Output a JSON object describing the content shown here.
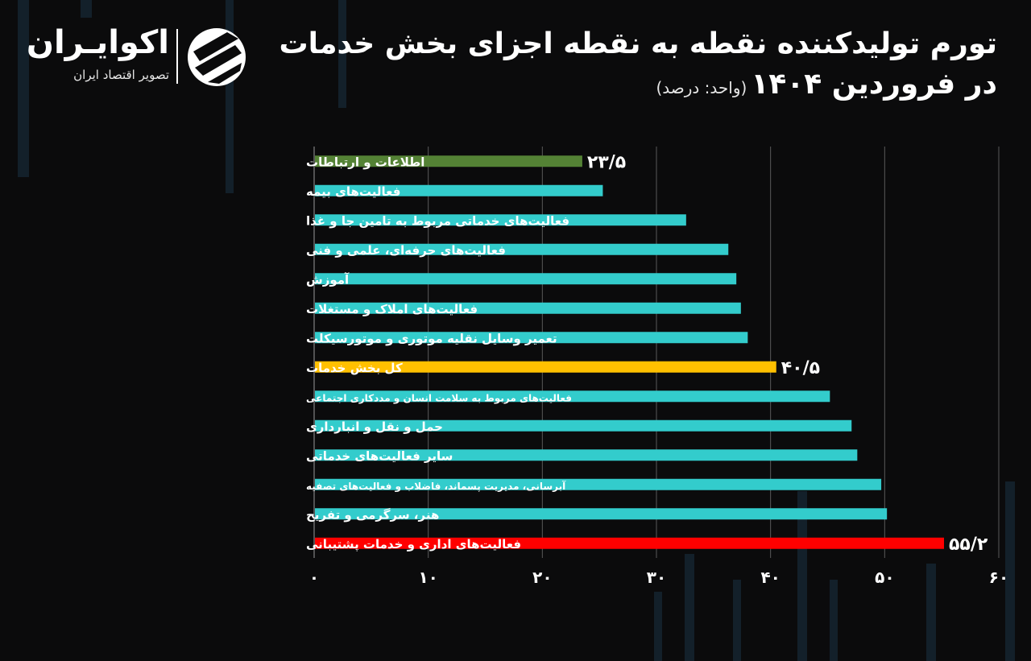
{
  "brand": {
    "name": "اکوایـران",
    "tagline": "تصویر اقتصاد ایران",
    "logo_icon": "ecoiran-logo-icon"
  },
  "header": {
    "title_line1": "تورم تولیدکننده نقطه به نقطه اجزای بخش خدمات",
    "title_line2_main": "در فروردین ۱۴۰۴",
    "title_line2_unit": "(واحد: درصد)"
  },
  "colors": {
    "background": "#0b0b0c",
    "default_bar": "#33cccc",
    "highlight_top": "#548235",
    "highlight_total": "#ffc000",
    "highlight_max": "#ff0000",
    "gridline": "#5a5a5a"
  },
  "chart_data": {
    "type": "bar",
    "orientation": "horizontal",
    "title": "تورم تولیدکننده نقطه به نقطه اجزای بخش خدمات در فروردین ۱۴۰۴",
    "unit": "درصد",
    "xlim": [
      0,
      60
    ],
    "xticks": [
      0,
      10,
      20,
      30,
      40,
      50,
      60
    ],
    "xtick_labels": [
      "۰",
      "۱۰",
      "۲۰",
      "۳۰",
      "۴۰",
      "۵۰",
      "۶۰"
    ],
    "grid": true,
    "categories": [
      "اطلاعات و ارتباطات",
      "فعالیت‌های بیمه",
      "فعالیت‌های خدماتی مربوط به تامین جا و غذا",
      "فعالیت‌های حرفه‌ای، علمی و فنی",
      "آموزش",
      "فعالیت‌های املاک و مستغلات",
      "تعمیر وسایل نقلیه موتوری و موتورسیکلت",
      "کل بخش خدمات",
      "فعالیت‌های مربوط به سلامت انسان و مددکاری اجتماعی",
      "حمل و نقل و انبارداری",
      "سایر فعالیت‌های خدماتی",
      "آبرسانی، مدیریت پسماند، فاضلاب و فعالیت‌های تصفیه",
      "هنر، سرگرمی و تفریح",
      "فعالیت‌های اداری و خدمات پشتیبانی"
    ],
    "values": [
      23.5,
      25.3,
      32.6,
      36.3,
      37.0,
      37.4,
      38.0,
      40.5,
      45.2,
      47.1,
      47.6,
      49.7,
      50.2,
      55.2
    ],
    "bar_colors": [
      "#548235",
      "#33cccc",
      "#33cccc",
      "#33cccc",
      "#33cccc",
      "#33cccc",
      "#33cccc",
      "#ffc000",
      "#33cccc",
      "#33cccc",
      "#33cccc",
      "#33cccc",
      "#33cccc",
      "#ff0000"
    ],
    "data_labels": {
      "0": "۲۳/۵",
      "7": "۴۰/۵",
      "13": "۵۵/۲"
    }
  }
}
